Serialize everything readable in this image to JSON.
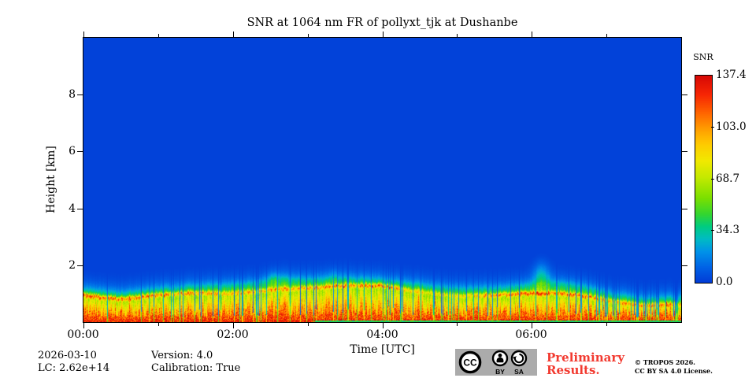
{
  "figure": {
    "annotations": {
      "date": "2026-03-10",
      "lc": "LC: 2.62e+14",
      "version": "Version: 4.0",
      "calibration": "Calibration: True",
      "preliminary_line1": "Preliminary",
      "preliminary_line2": "Results.",
      "preliminary_color": "#f23a30",
      "copyright_line1": "© TROPOS 2026.",
      "copyright_line2": "CC BY SA 4.0 License."
    },
    "license_badge": {
      "cc_label": "CC",
      "by_label": "BY",
      "sa_label": "SA",
      "background_color": "#ababab"
    }
  },
  "chart_data": {
    "type": "heatmap",
    "title": "SNR at 1064 nm FR of pollyxt_tjk at Dushanbe",
    "xlabel": "Time [UTC]",
    "ylabel": "Height [km]",
    "x_axis": {
      "range_hours": [
        0,
        8
      ],
      "major_ticks": [
        {
          "hour": 0,
          "label": "00:00"
        },
        {
          "hour": 2,
          "label": "02:00"
        },
        {
          "hour": 4,
          "label": "04:00"
        },
        {
          "hour": 6,
          "label": "06:00"
        }
      ],
      "minor_tick_hours": [
        1,
        3,
        5,
        7
      ]
    },
    "y_axis": {
      "range_km": [
        0,
        10
      ],
      "major_ticks": [
        {
          "km": 2,
          "label": "2"
        },
        {
          "km": 4,
          "label": "4"
        },
        {
          "km": 6,
          "label": "6"
        },
        {
          "km": 8,
          "label": "8"
        }
      ]
    },
    "colorbar": {
      "label": "SNR",
      "vmin": 0.0,
      "vmax": 137.4,
      "tick_values": [
        137.4,
        103.0,
        68.7,
        34.3,
        0.0
      ],
      "tick_labels": [
        "137.4",
        "103.0",
        "68.7",
        "34.3",
        "0.0"
      ]
    },
    "colormap_stops": [
      [
        0.0,
        [
          2,
          62,
          215
        ]
      ],
      [
        0.07,
        [
          0,
          98,
          230
        ]
      ],
      [
        0.15,
        [
          0,
          148,
          233
        ]
      ],
      [
        0.21,
        [
          0,
          188,
          196
        ]
      ],
      [
        0.27,
        [
          0,
          204,
          130
        ]
      ],
      [
        0.33,
        [
          52,
          214,
          48
        ]
      ],
      [
        0.41,
        [
          125,
          224,
          0
        ]
      ],
      [
        0.51,
        [
          198,
          234,
          0
        ]
      ],
      [
        0.59,
        [
          242,
          233,
          0
        ]
      ],
      [
        0.67,
        [
          255,
          203,
          0
        ]
      ],
      [
        0.75,
        [
          255,
          153,
          0
        ]
      ],
      [
        0.83,
        [
          255,
          94,
          0
        ]
      ],
      [
        0.91,
        [
          247,
          38,
          4
        ]
      ],
      [
        1.0,
        [
          216,
          10,
          6
        ]
      ]
    ],
    "background_snr": 0,
    "boundary_layer_keypoints": [
      {
        "t_hour": 0.0,
        "ridge_km": 0.93,
        "top_km": 1.15,
        "surface_km": 0.3,
        "ridge_strength": 0.75,
        "gap_fraction": 0.02
      },
      {
        "t_hour": 0.5,
        "ridge_km": 0.8,
        "top_km": 1.02,
        "surface_km": 0.28,
        "ridge_strength": 0.7,
        "gap_fraction": 0.03
      },
      {
        "t_hour": 1.0,
        "ridge_km": 0.95,
        "top_km": 1.18,
        "surface_km": 0.3,
        "ridge_strength": 0.65,
        "gap_fraction": 0.04
      },
      {
        "t_hour": 1.5,
        "ridge_km": 1.03,
        "top_km": 1.28,
        "surface_km": 0.3,
        "ridge_strength": 0.6,
        "gap_fraction": 0.06
      },
      {
        "t_hour": 1.9,
        "ridge_km": 1.0,
        "top_km": 1.3,
        "surface_km": 0.3,
        "ridge_strength": 0.45,
        "gap_fraction": 0.18
      },
      {
        "t_hour": 2.2,
        "ridge_km": 1.05,
        "top_km": 1.35,
        "surface_km": 0.34,
        "ridge_strength": 0.5,
        "gap_fraction": 0.12
      },
      {
        "t_hour": 2.6,
        "ridge_km": 1.15,
        "top_km": 1.55,
        "surface_km": 0.36,
        "ridge_strength": 0.55,
        "gap_fraction": 0.1
      },
      {
        "t_hour": 3.0,
        "ridge_km": 1.2,
        "top_km": 1.5,
        "surface_km": 0.36,
        "ridge_strength": 0.5,
        "gap_fraction": 0.12
      },
      {
        "t_hour": 3.5,
        "ridge_km": 1.28,
        "top_km": 1.55,
        "surface_km": 0.38,
        "ridge_strength": 0.6,
        "gap_fraction": 0.14
      },
      {
        "t_hour": 4.0,
        "ridge_km": 1.28,
        "top_km": 1.5,
        "surface_km": 0.38,
        "ridge_strength": 0.75,
        "gap_fraction": 0.12
      },
      {
        "t_hour": 4.4,
        "ridge_km": 1.1,
        "top_km": 1.35,
        "surface_km": 0.36,
        "ridge_strength": 0.35,
        "gap_fraction": 0.22
      },
      {
        "t_hour": 5.0,
        "ridge_km": 0.92,
        "top_km": 1.18,
        "surface_km": 0.34,
        "ridge_strength": 0.3,
        "gap_fraction": 0.26
      },
      {
        "t_hour": 5.5,
        "ridge_km": 0.95,
        "top_km": 1.2,
        "surface_km": 0.34,
        "ridge_strength": 0.6,
        "gap_fraction": 0.18
      },
      {
        "t_hour": 5.9,
        "ridge_km": 1.0,
        "top_km": 1.3,
        "surface_km": 0.34,
        "ridge_strength": 0.8,
        "gap_fraction": 0.1
      },
      {
        "t_hour": 6.3,
        "ridge_km": 1.02,
        "top_km": 1.4,
        "surface_km": 0.33,
        "ridge_strength": 0.7,
        "gap_fraction": 0.1
      },
      {
        "t_hour": 6.7,
        "ridge_km": 0.92,
        "top_km": 1.25,
        "surface_km": 0.32,
        "ridge_strength": 0.65,
        "gap_fraction": 0.14
      },
      {
        "t_hour": 7.1,
        "ridge_km": 0.72,
        "top_km": 0.98,
        "surface_km": 0.28,
        "ridge_strength": 0.5,
        "gap_fraction": 0.18
      },
      {
        "t_hour": 7.5,
        "ridge_km": 0.58,
        "top_km": 0.82,
        "surface_km": 0.26,
        "ridge_strength": 0.55,
        "gap_fraction": 0.15
      },
      {
        "t_hour": 8.0,
        "ridge_km": 0.62,
        "top_km": 0.88,
        "surface_km": 0.28,
        "ridge_strength": 0.6,
        "gap_fraction": 0.13
      }
    ],
    "plumes": [
      {
        "t_hour": 6.13,
        "center_km": 1.55,
        "width_hour": 0.11,
        "height_km": 0.5,
        "snr": 26
      },
      {
        "t_hour": 2.55,
        "center_km": 1.45,
        "width_hour": 0.08,
        "height_km": 0.3,
        "snr": 12
      },
      {
        "t_hour": 3.35,
        "center_km": 1.55,
        "width_hour": 0.05,
        "height_km": 0.3,
        "snr": 10
      }
    ],
    "bottom_overlap_strip": {
      "start_hour": 3.1,
      "snr": 36,
      "thickness_km": 0.06
    }
  }
}
